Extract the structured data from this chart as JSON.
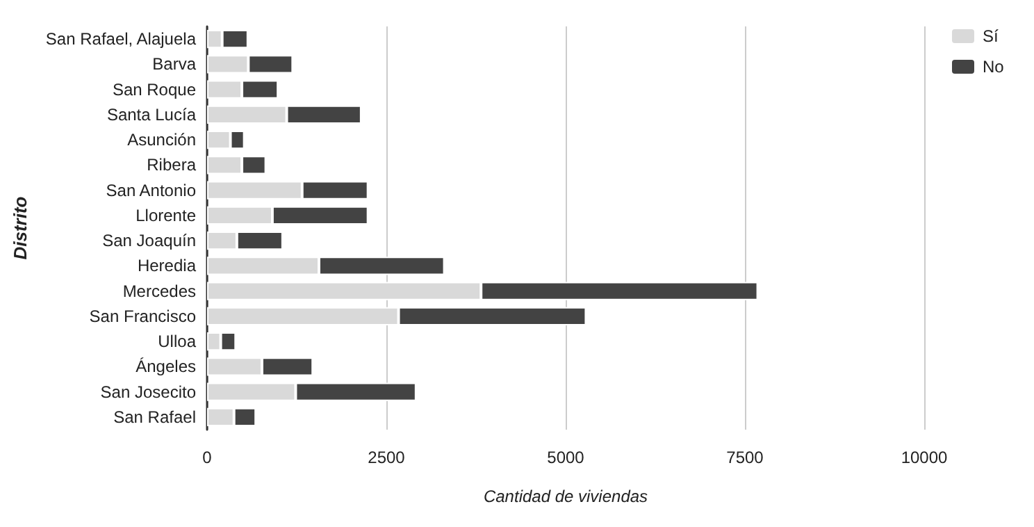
{
  "chart_data": {
    "type": "bar",
    "orientation": "horizontal",
    "stacked": true,
    "xlabel": "Cantidad de viviendas",
    "ylabel": "Distrito",
    "categories": [
      "San Rafael, Alajuela",
      "Barva",
      "San Roque",
      "Santa Lucía",
      "Asunción",
      "Ribera",
      "San Antonio",
      "Llorente",
      "San Joaquín",
      "Heredia",
      "Mercedes",
      "San Francisco",
      "Ulloa",
      "Ángeles",
      "San Josecito",
      "San Rafael"
    ],
    "series": [
      {
        "name": "Sí",
        "color": "#d9d9d9",
        "values": [
          210,
          575,
          485,
          1110,
          325,
          485,
          1325,
          910,
          415,
          1560,
          3820,
          2670,
          190,
          765,
          1235,
          375
        ]
      },
      {
        "name": "No",
        "color": "#434343",
        "values": [
          360,
          620,
          505,
          1040,
          195,
          335,
          920,
          1335,
          640,
          1750,
          3860,
          2615,
          210,
          710,
          1680,
          305
        ]
      }
    ],
    "xlim": [
      0,
      10000
    ],
    "xticks": [
      0,
      2500,
      5000,
      7500,
      10000
    ],
    "grid": "x",
    "legend": "top right"
  }
}
